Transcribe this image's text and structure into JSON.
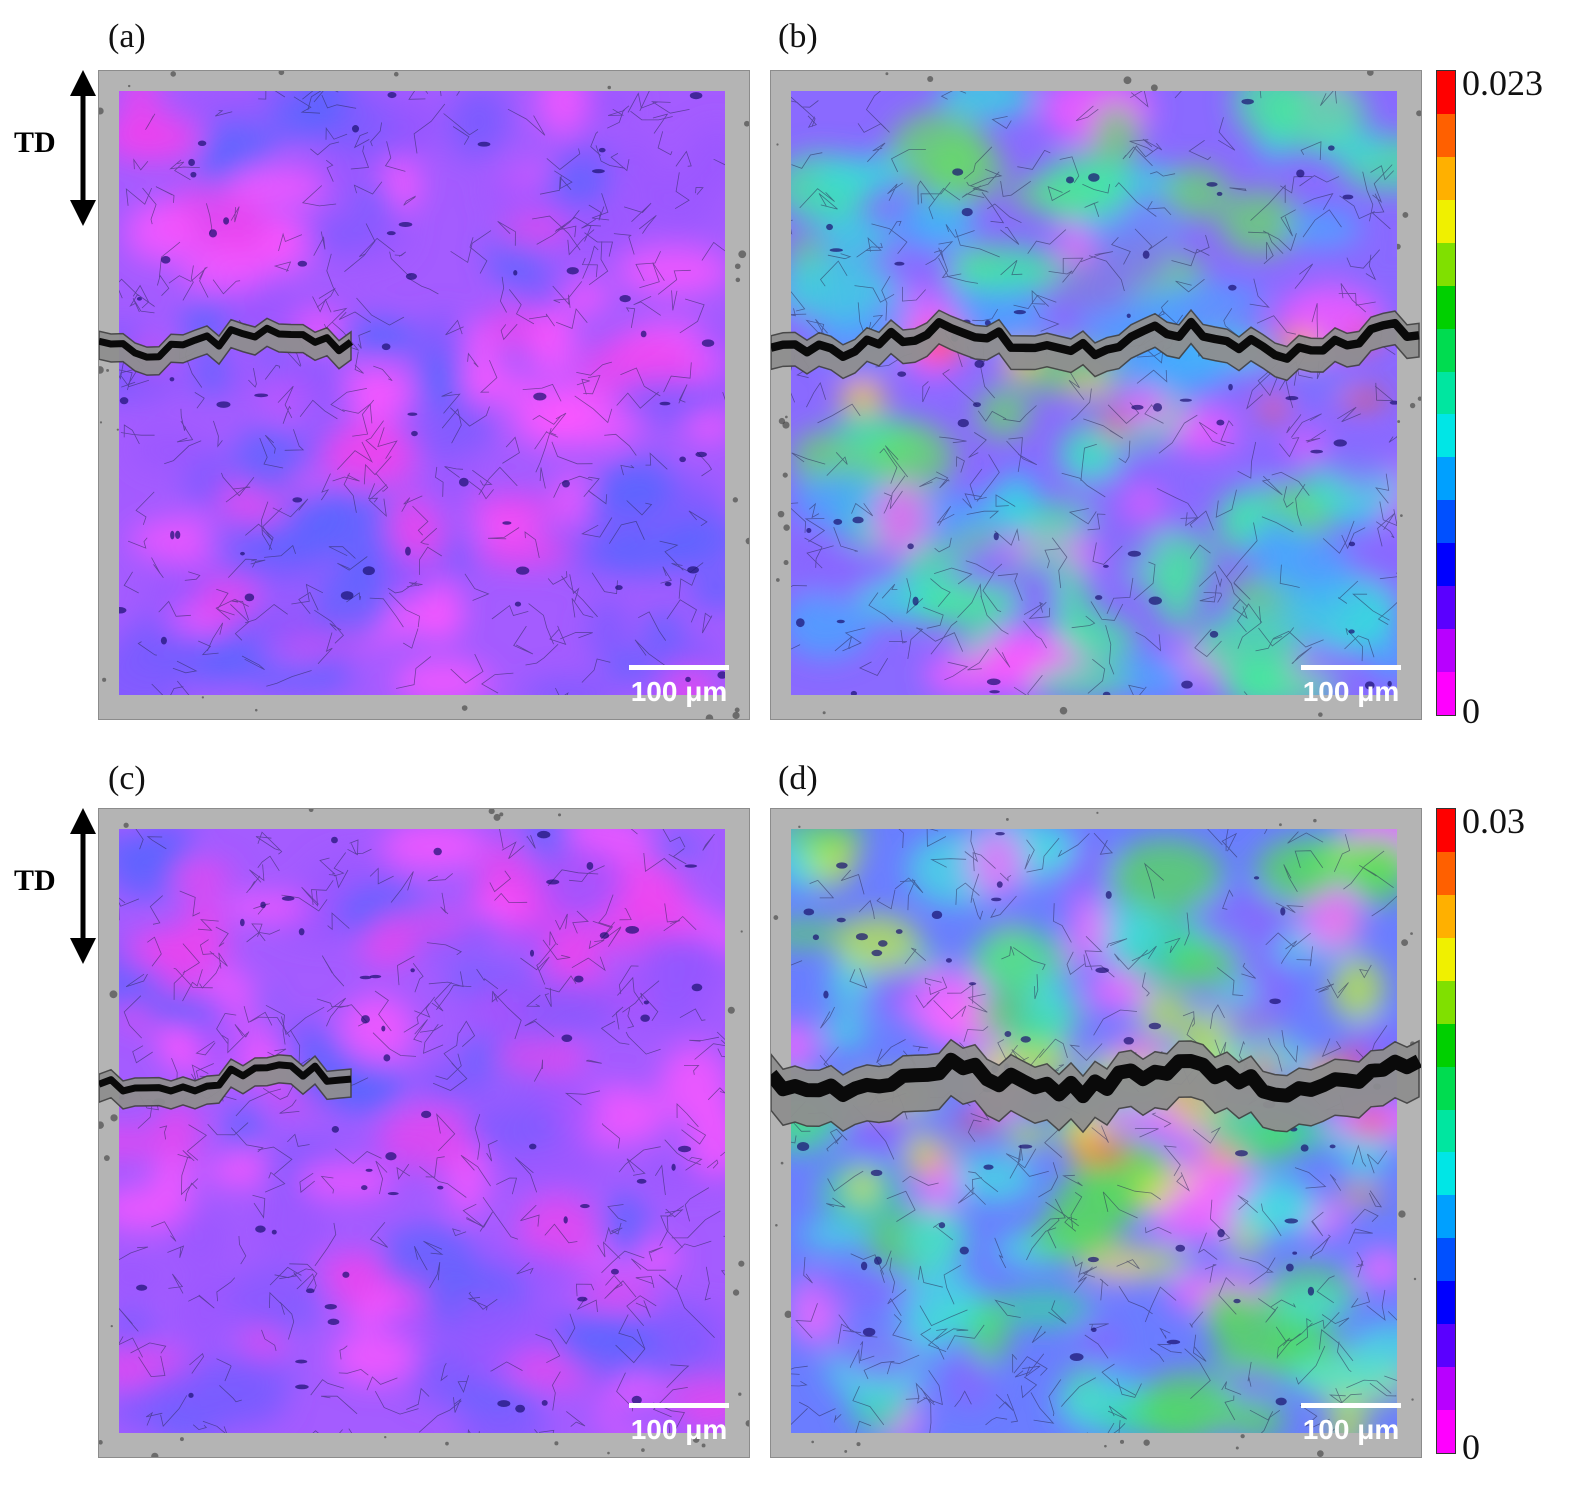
{
  "panels": [
    {
      "label": "(a)",
      "scalebar": "100 μm",
      "crack": "short-left",
      "strain_level": "low"
    },
    {
      "label": "(b)",
      "scalebar": "100 μm",
      "crack": "full",
      "strain_level": "medium"
    },
    {
      "label": "(c)",
      "scalebar": "100 μm",
      "crack": "short-left",
      "strain_level": "low"
    },
    {
      "label": "(d)",
      "scalebar": "100 μm",
      "crack": "full-wide",
      "strain_level": "high"
    }
  ],
  "direction_indicator": {
    "label": "TD"
  },
  "colorbars": [
    {
      "max": "0.023",
      "min": "0"
    },
    {
      "max": "0.03",
      "min": "0"
    }
  ],
  "colormap": [
    "#ff00ff",
    "#b800ff",
    "#5a00ff",
    "#0000ff",
    "#0050ff",
    "#00a0ff",
    "#00e6e6",
    "#00e6a0",
    "#00dc50",
    "#00d000",
    "#80e000",
    "#f0f000",
    "#ffb000",
    "#ff6000",
    "#ff0000"
  ]
}
